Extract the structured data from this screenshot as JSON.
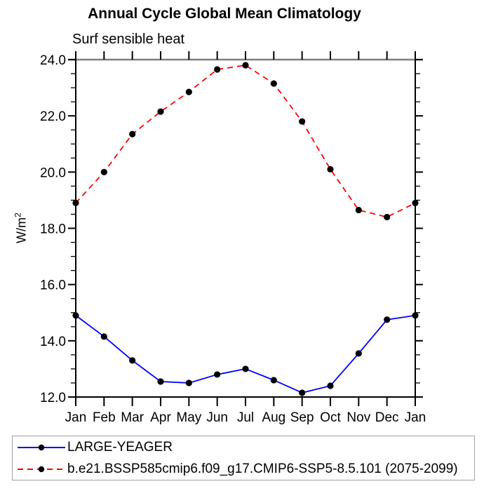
{
  "colors": {
    "background": "#ffffff",
    "axis": "#000000",
    "top_border": "#7f7f7f",
    "tick": "#000000",
    "text": "#000000",
    "marker": "#000000",
    "legend_border": "#a0a0a0"
  },
  "chart_data": {
    "type": "line",
    "title": "Annual Cycle Global Mean Climatology",
    "subtitle": "Surf sensible heat",
    "ylabel": "W/m²",
    "ylabel_base": "W/m",
    "ylabel_exp": "2",
    "categories": [
      "Jan",
      "Feb",
      "Mar",
      "Apr",
      "May",
      "Jun",
      "Jul",
      "Aug",
      "Sep",
      "Oct",
      "Nov",
      "Dec",
      "Jan"
    ],
    "ylim": [
      12.0,
      24.0
    ],
    "y_major_step": 2.0,
    "y_minor_step": 0.5,
    "y_tick_decimals": 1,
    "grid": false,
    "legend_position": "bottom",
    "series": [
      {
        "name": "LARGE-YEAGER",
        "color": "#0000ff",
        "style": "solid",
        "marker": "black-circle",
        "values": [
          14.9,
          14.15,
          13.3,
          12.55,
          12.5,
          12.8,
          13.0,
          12.6,
          12.15,
          12.4,
          13.55,
          14.75,
          14.9
        ]
      },
      {
        "name": "b.e21.BSSP585cmip6.f09_g17.CMIP6-SSP5-8.5.101 (2075-2099)",
        "color": "#ff0000",
        "style": "dashed",
        "marker": "black-circle",
        "values": [
          18.9,
          20.0,
          21.35,
          22.15,
          22.85,
          23.65,
          23.8,
          23.15,
          21.8,
          20.1,
          18.65,
          18.4,
          18.9
        ]
      }
    ]
  }
}
